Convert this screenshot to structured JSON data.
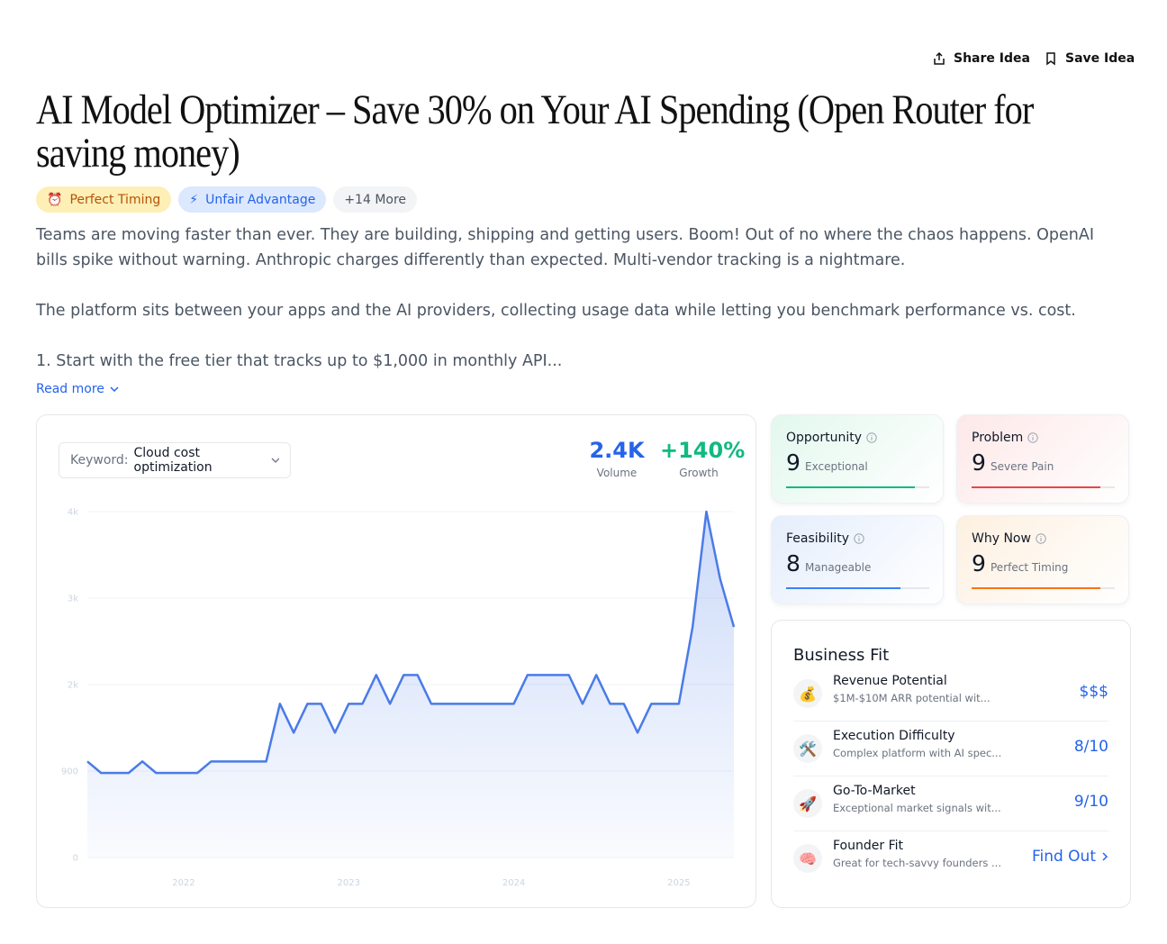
{
  "header": {
    "share": "Share Idea",
    "save": "Save Idea"
  },
  "title": "AI Model Optimizer – Save 30% on Your AI Spending (Open Router for saving money)",
  "tags": [
    {
      "icon": "⏰",
      "label": "Perfect Timing"
    },
    {
      "icon": "⚡",
      "label": "Unfair Advantage"
    },
    {
      "label": "+14 More"
    }
  ],
  "description": [
    "Teams are moving faster than ever. They are building, shipping and getting users. Boom! Out of no where the chaos happens. OpenAI bills spike without warning. Anthropic charges differently than expected. Multi-vendor tracking is a nightmare.",
    "The platform sits between your apps and the AI providers, collecting usage data while letting you benchmark performance vs. cost.",
    "1. Start with the free tier that tracks up to $1,000 in monthly API..."
  ],
  "read_more": "Read more",
  "keyword": {
    "label": "Keyword:",
    "value": "Cloud cost optimization"
  },
  "stats": [
    {
      "value": "2.4K",
      "label": "Volume"
    },
    {
      "value": "+140%",
      "label": "Growth"
    }
  ],
  "scores": [
    {
      "name": "Opportunity",
      "score": 9,
      "label": "Exceptional",
      "color": "#10b981"
    },
    {
      "name": "Problem",
      "score": 9,
      "label": "Severe Pain",
      "color": "#ef4444"
    },
    {
      "name": "Feasibility",
      "score": 8,
      "label": "Manageable",
      "color": "#3b82f6"
    },
    {
      "name": "Why Now",
      "score": 9,
      "label": "Perfect Timing",
      "color": "#f97316"
    }
  ],
  "business_fit": {
    "title": "Business Fit",
    "items": [
      {
        "icon": "💰",
        "name": "Revenue Potential",
        "desc": "$1M-$10M ARR potential wit...",
        "value": "$$$"
      },
      {
        "icon": "🛠️",
        "name": "Execution Difficulty",
        "desc": "Complex platform with AI spec...",
        "value": "8/10"
      },
      {
        "icon": "🚀",
        "name": "Go-To-Market",
        "desc": "Exceptional market signals wit...",
        "value": "9/10"
      },
      {
        "icon": "🧠",
        "name": "Founder Fit",
        "desc": "Great for tech-savvy founders ...",
        "value": "Find Out"
      }
    ]
  },
  "chart_data": {
    "type": "line",
    "categories": [
      null,
      null,
      null,
      null,
      null,
      null,
      null,
      "2022",
      null,
      null,
      null,
      null,
      null,
      null,
      null,
      null,
      null,
      null,
      null,
      "2023",
      null,
      null,
      null,
      null,
      null,
      null,
      null,
      null,
      null,
      null,
      null,
      "2024",
      null,
      null,
      null,
      null,
      null,
      null,
      null,
      null,
      null,
      null,
      null,
      "2025",
      null,
      null,
      null,
      null
    ],
    "series": [
      {
        "name": "Volume",
        "color": "#4a7be8",
        "values": [
          1000,
          880,
          880,
          880,
          1000,
          880,
          880,
          880,
          880,
          1000,
          1000,
          1000,
          1000,
          1000,
          1600,
          1300,
          1600,
          1600,
          1300,
          1600,
          1600,
          1900,
          1600,
          1900,
          1900,
          1600,
          1600,
          1600,
          1600,
          1600,
          1600,
          1600,
          1900,
          1900,
          1900,
          1900,
          1600,
          1900,
          1600,
          1600,
          1300,
          1600,
          1600,
          1600,
          2400,
          3600,
          2900,
          2400
        ]
      }
    ],
    "ylim": [
      0,
      3600
    ],
    "yticks": [
      0,
      900,
      {
        "value": 1800,
        "label": "2k"
      },
      {
        "value": 2700,
        "label": "3k"
      },
      {
        "value": 3600,
        "label": "4k"
      }
    ],
    "grid": true
  }
}
